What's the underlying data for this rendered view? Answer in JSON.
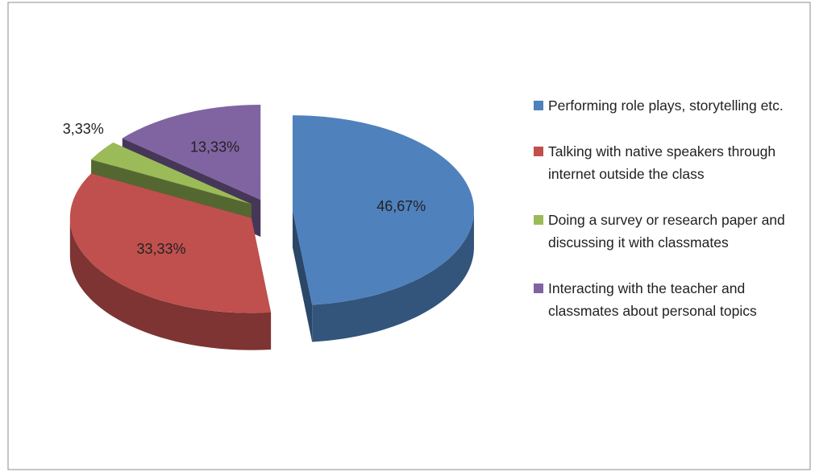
{
  "chart_data": {
    "type": "pie",
    "categories": [
      "Performing role plays, storytelling etc.",
      "Talking with native speakers through internet outside the class",
      "Doing a survey or research paper and discussing it with classmates",
      "Interacting with the teacher and classmates about personal topics"
    ],
    "values": [
      46.67,
      33.33,
      3.33,
      13.33
    ],
    "value_labels": [
      "46,67%",
      "33,33%",
      "3,33%",
      "13,33%"
    ],
    "colors": [
      "#4f81bd",
      "#c0504d",
      "#9bbb59",
      "#8064a2"
    ],
    "legend": "right"
  }
}
